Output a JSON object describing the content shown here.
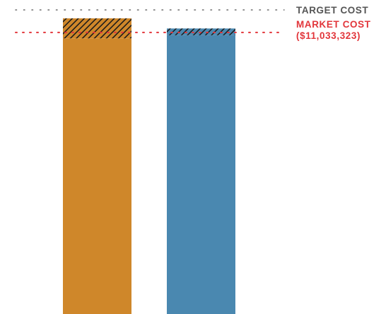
{
  "chart_data": {
    "type": "bar",
    "categories": [
      "",
      ""
    ],
    "values": [
      1.05,
      1.014
    ],
    "hatched_excess": [
      0.071,
      0.024
    ],
    "ylim": [
      0,
      1.08
    ],
    "grid": false,
    "legend": "none",
    "reference_lines": [
      {
        "name": "target",
        "label": "TARGET COST",
        "value": 1.08,
        "color": "#6b6b6b",
        "style": "dotted"
      },
      {
        "name": "market",
        "label": "MARKET COST",
        "sublabel": "($11,033,323)",
        "value": 1.0,
        "color": "#e2363b",
        "style": "dotted"
      }
    ],
    "colors": {
      "bars": [
        "#cf872a",
        "#4a88b0"
      ],
      "hatch": "#1a1a1a"
    }
  }
}
